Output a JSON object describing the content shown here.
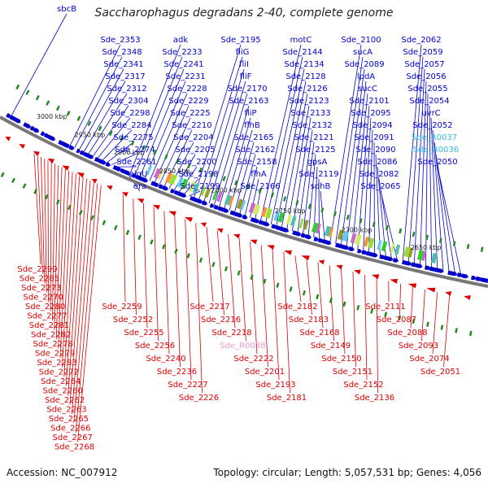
{
  "title": "Saccharophagus degradans 2-40, complete genome",
  "footer": {
    "accession": "Accession: NC_007912",
    "summary": "Topology: circular; Length: 5,057,531 bp; Genes: 4,056"
  },
  "colors": {
    "forward": "#0000cc",
    "reverse": "#dd0000",
    "rna_cyan": "#33bbdd",
    "rna_pink": "#ee99cc",
    "backbone": "#777777",
    "marker": "#228822"
  },
  "kbp_ticks": [
    "3000 kbp",
    "2950 kbp",
    "2900 kbp",
    "2850 kbp",
    "2800 kbp",
    "2750 kbp",
    "2700 kbp",
    "2650 kbp"
  ],
  "top_labels": [
    "sbcB",
    "Sde_2353",
    "Sde_2348",
    "Sde_2341",
    "Sde_2317",
    "Sde_2312",
    "Sde_2304",
    "Sde_2298",
    "Sde_2284",
    "Sde_2275",
    "Sde_2274",
    "Sde_2261",
    "algU",
    "era",
    "adk",
    "Sde_2233",
    "Sde_2241",
    "Sde_2231",
    "Sde_2228",
    "Sde_2229",
    "Sde_2225",
    "Sde_2210",
    "Sde_2204",
    "Sde_2205",
    "Sde_2200",
    "Sde_2198",
    "Sde_2199",
    "Sde_2195",
    "fliG",
    "fliI",
    "fliF",
    "Sde_2170",
    "Sde_2163",
    "fliP",
    "flhB",
    "Sde_2165",
    "Sde_2162",
    "Sde_2158",
    "flhA",
    "Sde_2166",
    "motC",
    "Sde_2144",
    "Sde_2134",
    "Sde_2128",
    "Sde_2126",
    "Sde_2123",
    "Sde_2133",
    "Sde_2132",
    "Sde_2121",
    "Sde_2125",
    "gpsA",
    "Sde_2119",
    "sdhB",
    "Sde_2100",
    "sucA",
    "Sde_2089",
    "lpdA",
    "sucC",
    "Sde_2101",
    "Sde_2095",
    "Sde_2094",
    "Sde_2091",
    "Sde_2090",
    "Sde_2086",
    "Sde_2082",
    "Sde_2065",
    "Sde_2062",
    "Sde_2059",
    "Sde_2057",
    "Sde_2056",
    "Sde_2055",
    "Sde_2054",
    "uvrC",
    "Sde_2052",
    "Sde_R0037",
    "Sde_R0036",
    "Sde_2050"
  ],
  "bottom_labels": [
    "Sde_2299",
    "Sde_2285",
    "Sde_2273",
    "Sde_2270",
    "Sde_2280",
    "Sde_2277",
    "Sde_2281",
    "Sde_2282",
    "Sde_2278",
    "Sde_2279",
    "Sde_2283",
    "Sde_2272",
    "Sde_2264",
    "Sde_2260",
    "Sde_2262",
    "Sde_2263",
    "Sde_2265",
    "Sde_2266",
    "Sde_2267",
    "Sde_2268",
    "Sde_2259",
    "Sde_2252",
    "Sde_2255",
    "Sde_2256",
    "Sde_2240",
    "Sde_2236",
    "Sde_2227",
    "Sde_2226",
    "Sde_2217",
    "Sde_2216",
    "Sde_2218",
    "Sde_R0038",
    "Sde_2222",
    "Sde_2201",
    "Sde_2193",
    "Sde_2181",
    "Sde_2182",
    "Sde_2183",
    "Sde_2168",
    "Sde_2149",
    "Sde_2150",
    "Sde_2151",
    "Sde_2152",
    "Sde_2136",
    "Sde_2111",
    "Sde_2087",
    "Sde_2088",
    "Sde_2093",
    "Sde_2074",
    "Sde_2051"
  ]
}
